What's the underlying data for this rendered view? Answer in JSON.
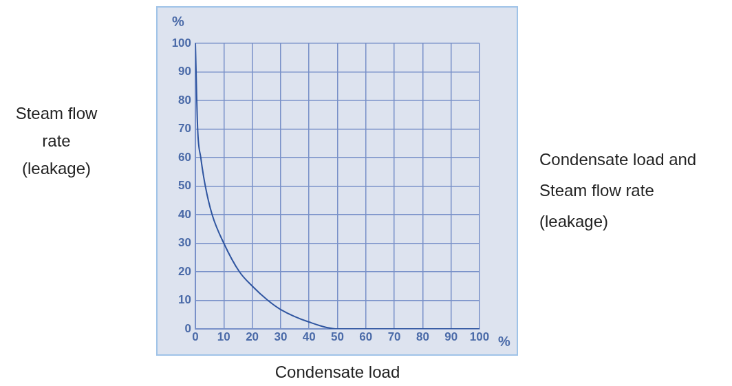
{
  "chart_data": {
    "type": "line",
    "xlabel": "Condensate load",
    "ylabel": "Steam flow rate (leakage)",
    "annotations": [
      "%",
      "%",
      "Condensate load and Steam flow rate (leakage)"
    ],
    "x": [
      0,
      0.8,
      1.9,
      3.5,
      5.9,
      10,
      15.5,
      20,
      25.5,
      30,
      40,
      50,
      60,
      70,
      80,
      90,
      100
    ],
    "series": [
      {
        "color": "#2f55a0",
        "values": [
          100,
          70,
          60,
          50,
          40,
          30,
          20,
          15,
          10,
          6.8,
          2.4,
          0,
          0,
          0,
          0,
          0,
          0
        ]
      }
    ],
    "xlim": [
      0,
      100
    ],
    "ylim": [
      0,
      100
    ],
    "xticks": [
      0,
      10,
      20,
      30,
      40,
      50,
      60,
      70,
      80,
      90,
      100
    ],
    "yticks": [
      0,
      10,
      20,
      30,
      40,
      50,
      60,
      70,
      80,
      90,
      100
    ],
    "grid": true,
    "legend": false,
    "marker": "none",
    "line_style": "solid"
  }
}
